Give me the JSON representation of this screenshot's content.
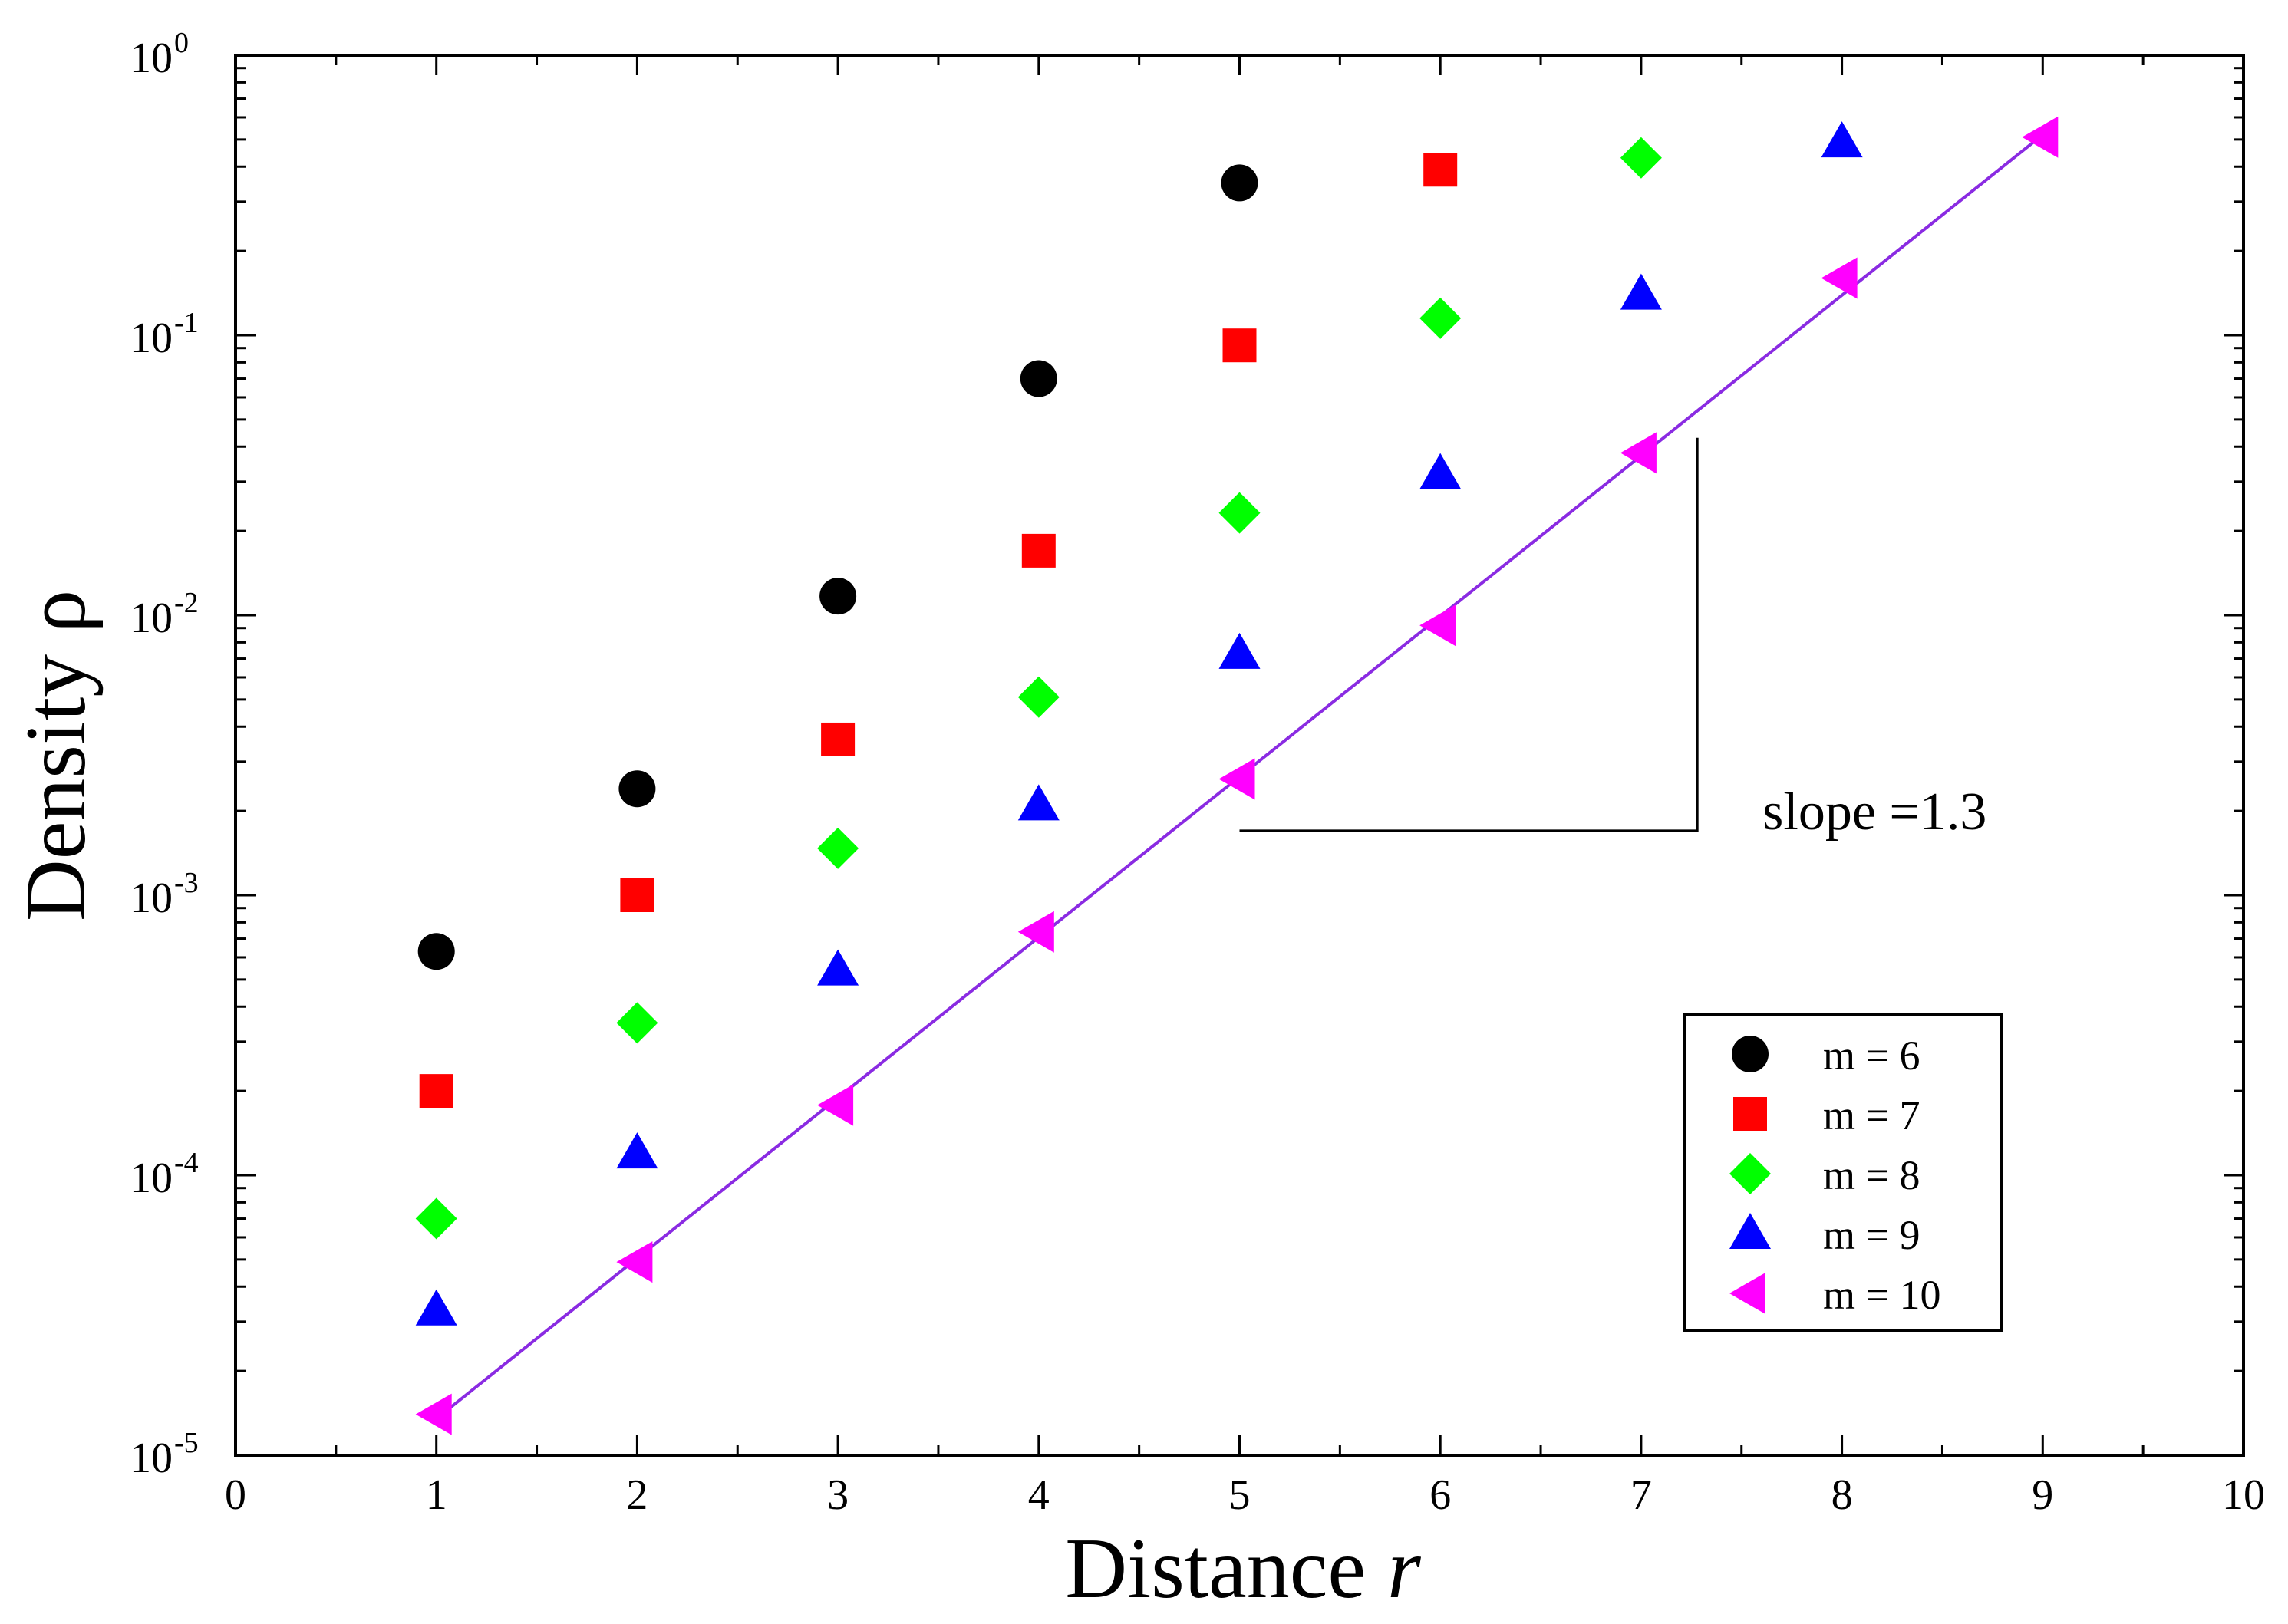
{
  "chart_data": {
    "type": "scatter",
    "title": "",
    "xlabel": "Distance",
    "xlabel_symbol": "r",
    "ylabel": "Density",
    "ylabel_symbol": "ρ",
    "xlim": [
      0,
      10
    ],
    "ylim": [
      1e-05,
      1
    ],
    "yscale": "log",
    "x_ticks": [
      "0",
      "1",
      "2",
      "3",
      "4",
      "5",
      "6",
      "7",
      "8",
      "9",
      "10"
    ],
    "y_ticks": [
      {
        "value": 1e-05,
        "base": "10",
        "exponent": "-5"
      },
      {
        "value": 0.0001,
        "base": "10",
        "exponent": "-4"
      },
      {
        "value": 0.001,
        "base": "10",
        "exponent": "-3"
      },
      {
        "value": 0.01,
        "base": "10",
        "exponent": "-2"
      },
      {
        "value": 0.1,
        "base": "10",
        "exponent": "-1"
      },
      {
        "value": 1,
        "base": "10",
        "exponent": "0"
      }
    ],
    "grid": false,
    "legend_position": "bottom-right",
    "series": [
      {
        "name": "m = 6",
        "marker": "circle",
        "color": "#000000",
        "x": [
          1,
          2,
          3,
          4,
          5
        ],
        "y": [
          0.00063,
          0.0024,
          0.0117,
          0.07,
          0.35
        ]
      },
      {
        "name": "m = 7",
        "marker": "square",
        "color": "#ff0000",
        "x": [
          1,
          2,
          3,
          4,
          5,
          6
        ],
        "y": [
          0.0002,
          0.001,
          0.0036,
          0.017,
          0.092,
          0.39
        ]
      },
      {
        "name": "m = 8",
        "marker": "diamond",
        "color": "#00ff00",
        "x": [
          1,
          2,
          3,
          4,
          5,
          6,
          7
        ],
        "y": [
          7e-05,
          0.00035,
          0.00147,
          0.0051,
          0.0232,
          0.115,
          0.43
        ]
      },
      {
        "name": "m = 9",
        "marker": "triangle-up",
        "color": "#0000ff",
        "x": [
          1,
          2,
          3,
          4,
          5,
          6,
          7,
          8
        ],
        "y": [
          3.3e-05,
          0.00012,
          0.00054,
          0.0021,
          0.0073,
          0.032,
          0.14,
          0.49
        ]
      },
      {
        "name": "m = 10",
        "marker": "triangle-left",
        "color": "#ff00ff",
        "x": [
          1,
          2,
          3,
          4,
          5,
          6,
          7,
          8,
          9
        ],
        "y": [
          1.4e-05,
          4.9e-05,
          0.000178,
          0.00074,
          0.0026,
          0.0092,
          0.038,
          0.16,
          0.51
        ]
      }
    ],
    "fit_line": {
      "color": "#8a2be2",
      "x": [
        1,
        9
      ],
      "y": [
        1.35e-05,
        0.52
      ]
    },
    "annotation": {
      "text": "slope =1.3",
      "bracket": {
        "x_start": 5,
        "x_corner": 7.28,
        "y_bottom": 0.0017,
        "y_top": 0.043
      }
    }
  }
}
